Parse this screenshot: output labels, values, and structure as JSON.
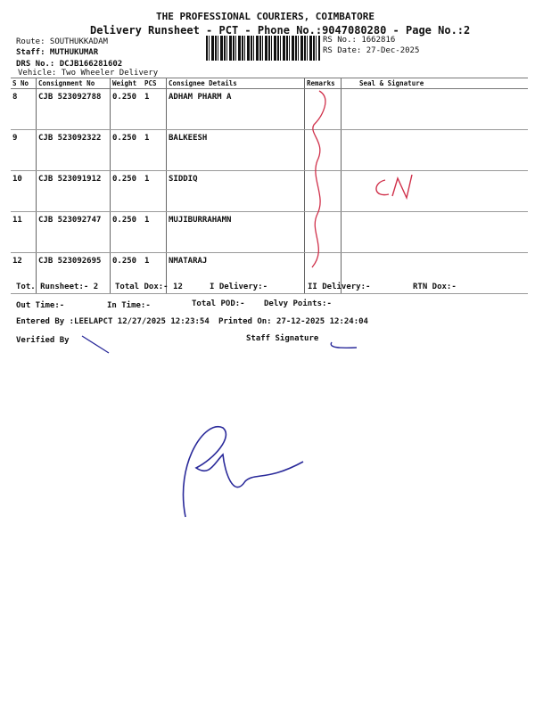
{
  "header": {
    "company": "THE PROFESSIONAL COURIERS, COIMBATORE",
    "subtitle": "Delivery Runsheet - PCT - Phone No.:9047080280 - Page No.:2",
    "route": "Route: SOUTHUKKADAM",
    "staff": "Staff: MUTHUKUMAR",
    "drs": "DRS No.: DCJB166281602",
    "vehicle": "Vehicle: Two Wheeler Delivery",
    "rs_no": "RS No.: 1662816",
    "rs_date": "RS Date: 27-Dec-2025"
  },
  "table": {
    "columns": [
      "S No",
      "Consignment No",
      "Weight",
      "PCS",
      "Consignee Details",
      "Remarks",
      "Seal & Signature"
    ],
    "rows": [
      {
        "sno": "8",
        "cn": "CJB 523092788",
        "wt": "0.250",
        "pcs": "1",
        "name": "ADHAM PHARM  A"
      },
      {
        "sno": "9",
        "cn": "CJB 523092322",
        "wt": "0.250",
        "pcs": "1",
        "name": "BALKEESH"
      },
      {
        "sno": "10",
        "cn": "CJB 523091912",
        "wt": "0.250",
        "pcs": "1",
        "name": "SIDDIQ"
      },
      {
        "sno": "11",
        "cn": "CJB 523092747",
        "wt": "0.250",
        "pcs": "1",
        "name": "MUJIBURRAHAMN"
      },
      {
        "sno": "12",
        "cn": "CJB 523092695",
        "wt": "0.250",
        "pcs": "1",
        "name": "NMATARAJ"
      }
    ]
  },
  "footer": {
    "tot_runsheet": "Tot. Runsheet:- 2",
    "total_dox": "Total Dox:-   12",
    "i_delivery": "I Delivery:-",
    "ii_delivery": "II Delivery:-",
    "rtn_dox": "RTN Dox:-",
    "out_time": "Out Time:-",
    "in_time": "In Time:-",
    "total_pod": "Total POD:-",
    "delvy_points": "Delvy Points:-",
    "entered_by": "Entered By :LEELAPCT 12/27/2025 12:23:54",
    "printed_on": "Printed On: 27-12-2025 12:24:04",
    "verified_by": "Verified By",
    "staff_signature": "Staff Signature"
  },
  "colors": {
    "ink_red": "#d0304a",
    "ink_blue": "#2a2a9a"
  }
}
